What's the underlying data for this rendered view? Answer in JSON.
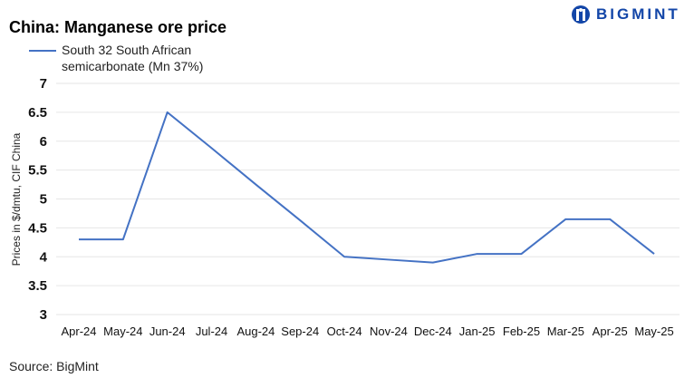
{
  "logo": {
    "text": "BIGMINT"
  },
  "source": "Source:  BigMint",
  "chart_data": {
    "type": "line",
    "title": "China: Manganese ore price",
    "xlabel": "",
    "ylabel": "Prices in $/dmtu, CIF China",
    "ylim": [
      3,
      7
    ],
    "yticks": [
      "3",
      "3.5",
      "4",
      "4.5",
      "5",
      "5.5",
      "6",
      "6.5",
      "7"
    ],
    "grid": true,
    "legend_position": "top-left",
    "categories": [
      "Apr-24",
      "May-24",
      "Jun-24",
      "Jul-24",
      "Aug-24",
      "Sep-24",
      "Oct-24",
      "Nov-24",
      "Dec-24",
      "Jan-25",
      "Feb-25",
      "Mar-25",
      "Apr-25",
      "May-25"
    ],
    "series": [
      {
        "name": "South 32 South African semicarbonate (Mn 37%)",
        "color": "#4472c4",
        "values": [
          4.3,
          4.3,
          6.5,
          5.88,
          5.25,
          4.63,
          4.0,
          3.95,
          3.9,
          4.05,
          4.05,
          4.65,
          4.65,
          4.05
        ]
      }
    ]
  }
}
